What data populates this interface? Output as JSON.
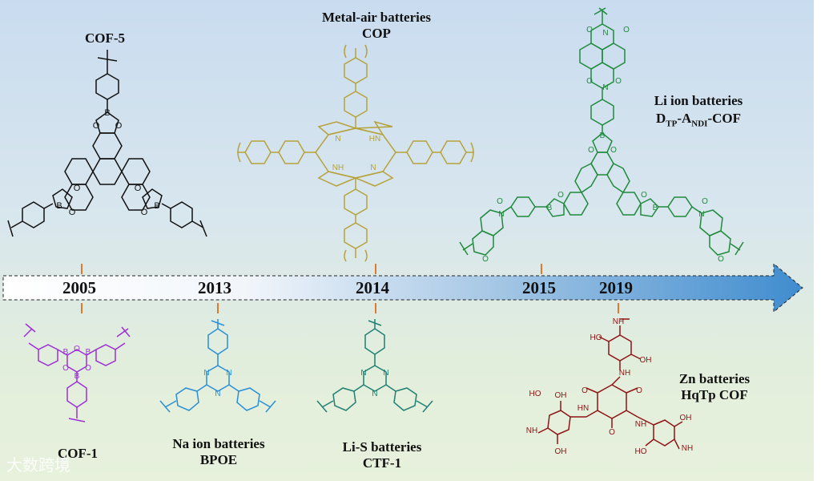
{
  "labels": {
    "cof5": "COF-5",
    "metal_air_line1": "Metal-air batteries",
    "metal_air_line2": "COP",
    "li_ion_line1": "Li ion batteries",
    "li_ion_d": "D",
    "li_ion_tp": "TP",
    "li_ion_a": "-A",
    "li_ion_ndi": "NDI",
    "li_ion_cof": "-COF",
    "cof1": "COF-1",
    "na_line1": "Na ion batteries",
    "na_line2": "BPOE",
    "lis_line1": "Li-S batteries",
    "lis_line2": "CTF-1",
    "zn_line1": "Zn batteries",
    "zn_line2": "HqTp COF"
  },
  "timeline": {
    "years": [
      "2005",
      "2013",
      "2014",
      "2015",
      "2019"
    ]
  },
  "atoms": {
    "boron": "B",
    "oxygen": "O",
    "nitrogen": "N",
    "nh": "NH",
    "hn": "HN",
    "oh": "OH",
    "ho": "HO"
  },
  "watermark": "大数跨境",
  "colors": {
    "cof5": "#111111",
    "cop": "#b6a23a",
    "cof_ndi": "#1f8a3c",
    "cof1": "#9b30d8",
    "bpoe": "#2a8fd6",
    "ctf1": "#1f7f73",
    "hqtp": "#8e1414",
    "tick": "#e07a2c"
  }
}
